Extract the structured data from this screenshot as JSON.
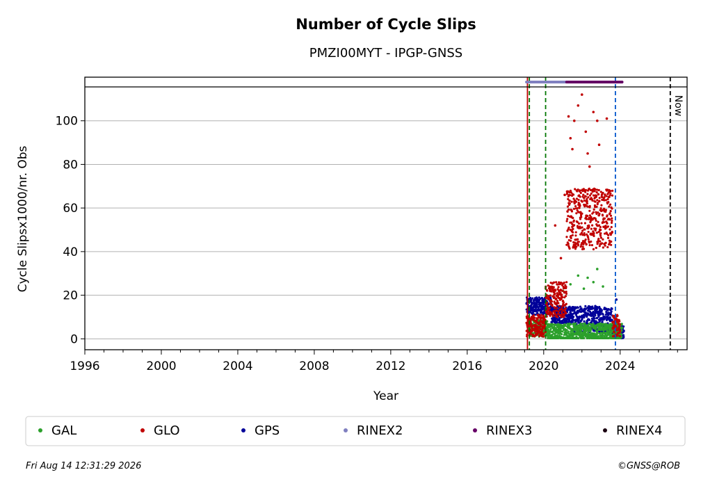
{
  "chart_data": {
    "type": "scatter",
    "title": "Number of Cycle Slips",
    "subtitle": "PMZI00MYT - IPGP-GNSS",
    "xlabel": "Year",
    "ylabel": "Cycle Slipsx1000/nr. Obs",
    "xlim": [
      1996,
      2027.5
    ],
    "ylim": [
      -5,
      120
    ],
    "x_ticks": [
      1996,
      2000,
      2004,
      2008,
      2012,
      2016,
      2020,
      2024
    ],
    "y_ticks": [
      0,
      20,
      40,
      60,
      80,
      100
    ],
    "grid": "horizontal",
    "legend_position": "bottom",
    "colors": {
      "GAL": "#2ca02c",
      "GLO": "#c00000",
      "GPS": "#000099",
      "RINEX2": "#8080c0",
      "RINEX3": "#660066",
      "RINEX4": "#1a0010",
      "start_line": "#c00000",
      "vline_green": "#007700",
      "vline_blue": "#0055cc",
      "now_line": "#000000"
    },
    "series": [
      {
        "name": "GAL",
        "segments": [
          {
            "x0": 2019.2,
            "x1": 2020.2,
            "base": 5,
            "spread": 4
          },
          {
            "x0": 2020.2,
            "x1": 2024.1,
            "base": 3,
            "spread": 4
          }
        ],
        "outliers": [
          [
            2021.4,
            25
          ],
          [
            2021.8,
            29
          ],
          [
            2022.3,
            28
          ],
          [
            2022.6,
            26
          ],
          [
            2022.8,
            32
          ],
          [
            2023.1,
            24
          ],
          [
            2021.0,
            22
          ],
          [
            2022.1,
            23
          ]
        ]
      },
      {
        "name": "GLO",
        "segments": [
          {
            "x0": 2019.1,
            "x1": 2020.1,
            "base": 6,
            "spread": 5
          },
          {
            "x0": 2020.1,
            "x1": 2021.2,
            "base": 18,
            "spread": 8
          },
          {
            "x0": 2021.2,
            "x1": 2023.6,
            "base": 55,
            "spread": 14
          },
          {
            "x0": 2023.6,
            "x1": 2024.0,
            "base": 6,
            "spread": 5
          }
        ],
        "outliers": [
          [
            2020.6,
            52
          ],
          [
            2020.9,
            37
          ],
          [
            2021.1,
            66
          ],
          [
            2021.3,
            102
          ],
          [
            2021.5,
            87
          ],
          [
            2021.6,
            100
          ],
          [
            2021.8,
            107
          ],
          [
            2022.0,
            112
          ],
          [
            2022.2,
            95
          ],
          [
            2022.4,
            79
          ],
          [
            2022.6,
            104
          ],
          [
            2022.8,
            100
          ],
          [
            2022.9,
            89
          ],
          [
            2023.3,
            101
          ],
          [
            2021.4,
            92
          ],
          [
            2022.3,
            85
          ]
        ]
      },
      {
        "name": "GPS",
        "segments": [
          {
            "x0": 2019.1,
            "x1": 2020.4,
            "base": 15,
            "spread": 4
          },
          {
            "x0": 2020.4,
            "x1": 2021.5,
            "base": 11,
            "spread": 4
          },
          {
            "x0": 2021.5,
            "x1": 2023.6,
            "base": 9,
            "spread": 6
          },
          {
            "x0": 2023.6,
            "x1": 2024.2,
            "base": 3,
            "spread": 3
          }
        ],
        "outliers": [
          [
            2023.8,
            18
          ],
          [
            2022.7,
            15
          ],
          [
            2023.2,
            14
          ]
        ]
      },
      {
        "name": "RINEX2",
        "x_range": [
          2019.1,
          2021.3
        ],
        "y": 119.5
      },
      {
        "name": "RINEX3",
        "x_range": [
          2021.2,
          2024.1
        ],
        "y": 119.5
      },
      {
        "name": "RINEX4",
        "x_range": null,
        "y": 119.5
      }
    ],
    "vertical_lines": [
      {
        "x": 2019.15,
        "color": "start_line",
        "style": "solid"
      },
      {
        "x": 2019.25,
        "color": "vline_green",
        "style": "dashed"
      },
      {
        "x": 2020.1,
        "color": "vline_green",
        "style": "dashed"
      },
      {
        "x": 2023.75,
        "color": "vline_blue",
        "style": "dashed"
      },
      {
        "x": 2026.62,
        "color": "now_line",
        "style": "dashed"
      }
    ],
    "now_label": "Now",
    "legend": [
      "GAL",
      "GLO",
      "GPS",
      "RINEX2",
      "RINEX3",
      "RINEX4"
    ]
  },
  "footer": {
    "timestamp": "Fri Aug 14 12:31:29 2026",
    "copyright": "©GNSS@ROB"
  }
}
